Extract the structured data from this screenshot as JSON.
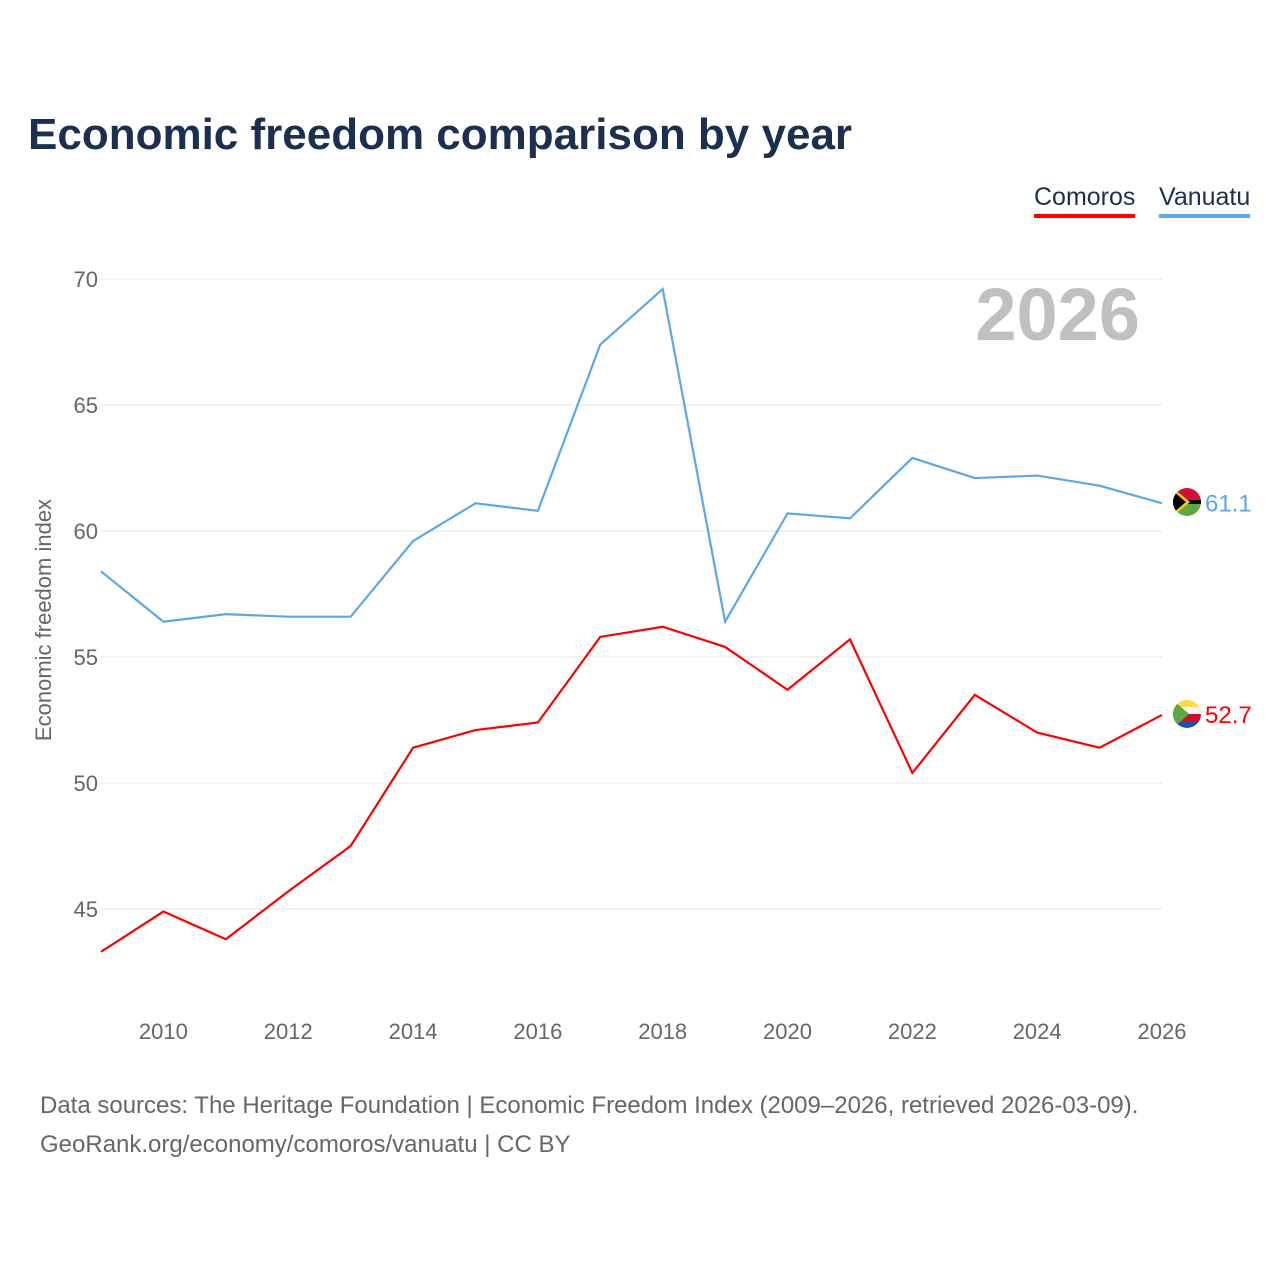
{
  "title": "Economic freedom comparison by year",
  "footer": {
    "line1": "Data sources: The Heritage Foundation | Economic Freedom Index (2009–2026, retrieved 2026-03-09).",
    "line2": "GeoRank.org/economy/comoros/vanuatu | CC BY"
  },
  "chart_data": {
    "type": "line",
    "title": "Economic freedom comparison by year",
    "xlabel": "",
    "ylabel": "Economic freedom index",
    "watermark": "2026",
    "x": [
      2009,
      2010,
      2011,
      2012,
      2013,
      2014,
      2015,
      2016,
      2017,
      2018,
      2019,
      2020,
      2021,
      2022,
      2023,
      2024,
      2025,
      2026
    ],
    "xticks": [
      "2010",
      "2012",
      "2014",
      "2016",
      "2018",
      "2020",
      "2022",
      "2024",
      "2026"
    ],
    "yticks": [
      "45",
      "50",
      "55",
      "60",
      "65",
      "70"
    ],
    "ylim": [
      42,
      70
    ],
    "xlim": [
      2009,
      2026
    ],
    "grid": true,
    "legend_position": "top-right",
    "series": [
      {
        "name": "Comoros",
        "color": "#ff0000",
        "end_label": "52.7",
        "values": [
          43.3,
          44.9,
          43.8,
          45.7,
          47.5,
          51.4,
          52.1,
          52.4,
          55.8,
          56.2,
          55.4,
          53.7,
          55.7,
          50.4,
          53.5,
          52.0,
          51.4,
          52.7
        ]
      },
      {
        "name": "Vanuatu",
        "color": "#5ba7ea",
        "end_label": "61.1",
        "values": [
          58.4,
          56.4,
          56.7,
          56.6,
          56.6,
          59.6,
          61.1,
          60.8,
          67.4,
          69.6,
          56.4,
          60.7,
          60.5,
          62.9,
          62.1,
          62.2,
          61.8,
          61.1
        ]
      }
    ]
  }
}
